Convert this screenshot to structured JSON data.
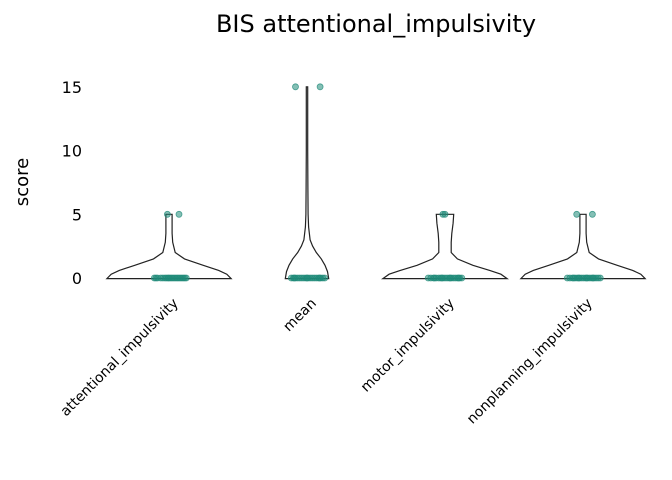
{
  "chart_data": {
    "type": "violin",
    "title": "BIS attentional_impulsivity",
    "xlabel": "",
    "ylabel": "score",
    "ylim": [
      -1.2,
      16.8
    ],
    "yticks": [
      0,
      5,
      10,
      15
    ],
    "grid": false,
    "legend": "none",
    "point_color": "#1f8a78",
    "categories": [
      "attentional_impulsivity",
      "mean",
      "motor_impulsivity",
      "nonplanning_impulsivity"
    ],
    "series": [
      {
        "category": "attentional_impulsivity",
        "points": [
          0,
          0,
          0,
          0,
          0,
          0,
          0,
          0,
          0,
          0,
          0,
          0,
          0,
          0,
          0,
          0,
          0,
          0,
          0,
          0,
          5,
          5
        ],
        "jitter": [
          -0.28,
          -0.22,
          -0.16,
          -0.12,
          -0.08,
          -0.05,
          -0.02,
          0.0,
          0.03,
          0.06,
          0.09,
          0.12,
          0.15,
          0.18,
          0.21,
          0.24,
          0.27,
          0.3,
          0.33,
          -0.25,
          -0.03,
          0.19
        ],
        "density": [
          [
            -0.05,
            1.0
          ],
          [
            0.3,
            0.93
          ],
          [
            0.6,
            0.8
          ],
          [
            1.0,
            0.55
          ],
          [
            1.5,
            0.25
          ],
          [
            2.0,
            0.1
          ],
          [
            2.8,
            0.06
          ],
          [
            3.5,
            0.05
          ],
          [
            4.3,
            0.05
          ],
          [
            5.0,
            0.05
          ]
        ]
      },
      {
        "category": "mean",
        "points": [
          0,
          0,
          0,
          0,
          0,
          0,
          0,
          0,
          0,
          0,
          0,
          0,
          0,
          0,
          0,
          0,
          0,
          0,
          0,
          0,
          15,
          15
        ],
        "jitter": [
          -0.3,
          -0.26,
          -0.22,
          -0.18,
          -0.14,
          -0.1,
          -0.06,
          -0.02,
          0.02,
          0.06,
          0.1,
          0.14,
          0.18,
          0.22,
          0.26,
          0.3,
          0.34,
          -0.24,
          0.0,
          0.24,
          -0.22,
          0.25
        ],
        "density": [
          [
            -0.05,
            0.35
          ],
          [
            0.5,
            0.33
          ],
          [
            1.0,
            0.29
          ],
          [
            1.5,
            0.23
          ],
          [
            2.0,
            0.15
          ],
          [
            2.5,
            0.09
          ],
          [
            3.0,
            0.05
          ],
          [
            4.0,
            0.025
          ],
          [
            5.0,
            0.018
          ],
          [
            7.0,
            0.014
          ],
          [
            10.0,
            0.012
          ],
          [
            13.0,
            0.012
          ],
          [
            15.0,
            0.012
          ]
        ]
      },
      {
        "category": "motor_impulsivity",
        "points": [
          0,
          0,
          0,
          0,
          0,
          0,
          0,
          0,
          0,
          0,
          0,
          0,
          0,
          0,
          0,
          0,
          0,
          0,
          0,
          0,
          5,
          5
        ],
        "jitter": [
          -0.32,
          -0.27,
          -0.22,
          -0.17,
          -0.12,
          -0.08,
          -0.04,
          0.0,
          0.04,
          0.08,
          0.12,
          0.16,
          0.2,
          0.24,
          0.28,
          0.32,
          -0.2,
          -0.06,
          0.1,
          0.26,
          -0.04,
          0.0
        ],
        "density": [
          [
            -0.05,
            1.0
          ],
          [
            0.3,
            0.9
          ],
          [
            0.6,
            0.72
          ],
          [
            1.0,
            0.45
          ],
          [
            1.5,
            0.2
          ],
          [
            2.0,
            0.1
          ],
          [
            2.8,
            0.1
          ],
          [
            3.5,
            0.11
          ],
          [
            4.3,
            0.13
          ],
          [
            5.0,
            0.14
          ]
        ]
      },
      {
        "category": "nonplanning_impulsivity",
        "points": [
          0,
          0,
          0,
          0,
          0,
          0,
          0,
          0,
          0,
          0,
          0,
          0,
          0,
          0,
          0,
          0,
          0,
          0,
          0,
          0,
          5,
          5
        ],
        "jitter": [
          -0.3,
          -0.25,
          -0.2,
          -0.15,
          -0.11,
          -0.07,
          -0.03,
          0.01,
          0.05,
          0.09,
          0.13,
          0.17,
          0.21,
          0.25,
          0.29,
          0.33,
          -0.18,
          -0.08,
          0.07,
          0.19,
          -0.12,
          0.18
        ],
        "density": [
          [
            -0.05,
            1.0
          ],
          [
            0.3,
            0.93
          ],
          [
            0.6,
            0.8
          ],
          [
            1.0,
            0.55
          ],
          [
            1.5,
            0.25
          ],
          [
            2.0,
            0.1
          ],
          [
            2.8,
            0.06
          ],
          [
            3.5,
            0.05
          ],
          [
            4.3,
            0.05
          ],
          [
            5.0,
            0.05
          ]
        ]
      }
    ]
  }
}
